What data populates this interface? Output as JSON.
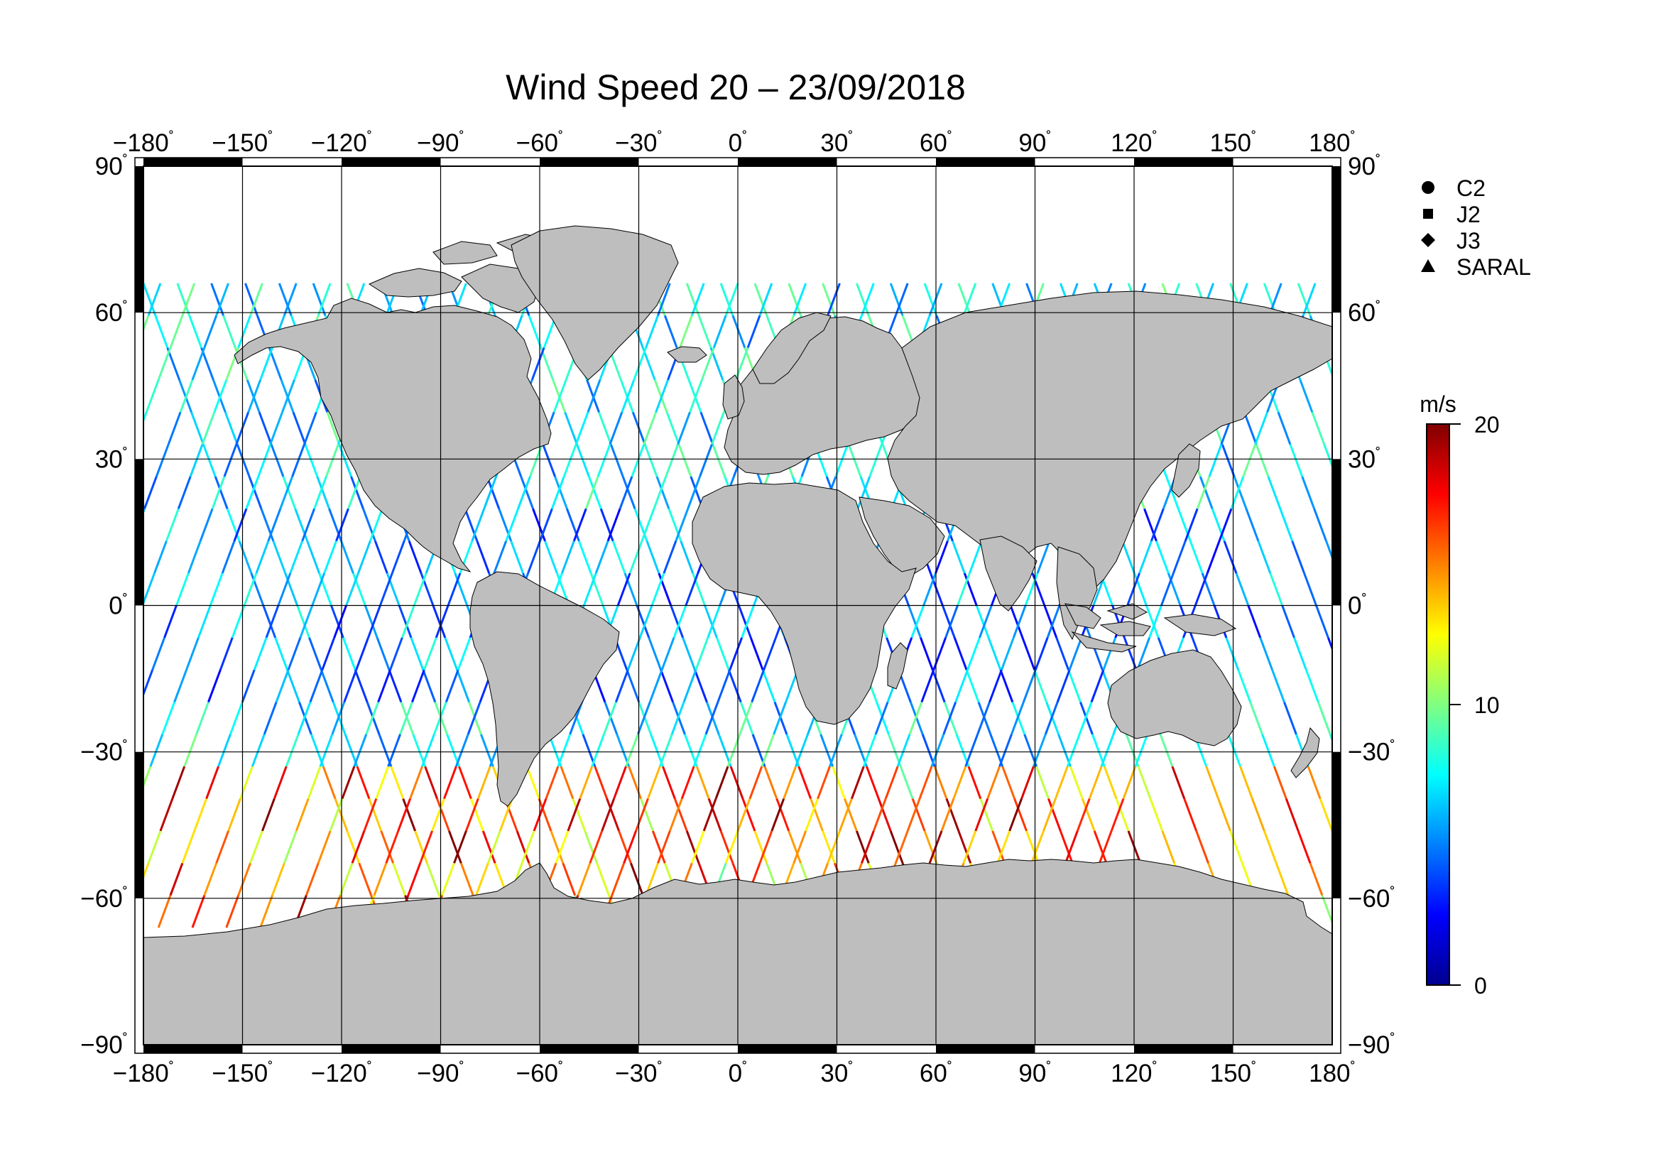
{
  "title": "Wind Speed 20 – 23/09/2018",
  "lon_ticks": [
    -180,
    -150,
    -120,
    -90,
    -60,
    -30,
    0,
    30,
    60,
    90,
    120,
    150,
    180
  ],
  "lat_ticks": [
    90,
    60,
    30,
    0,
    -30,
    -60,
    -90
  ],
  "lon_labels": [
    "−180",
    "−150",
    "−120",
    "−90",
    "−60",
    "−30",
    "0",
    "30",
    "60",
    "90",
    "120",
    "150",
    "180"
  ],
  "lat_labels": [
    "90",
    "60",
    "30",
    "0",
    "−30",
    "−60",
    "−90"
  ],
  "degree_symbol": "˚",
  "legend": [
    {
      "label": "C2",
      "symbol": "circle"
    },
    {
      "label": "J2",
      "symbol": "square"
    },
    {
      "label": "J3",
      "symbol": "diamond"
    },
    {
      "label": "SARAL",
      "symbol": "triangle"
    }
  ],
  "colorbar": {
    "unit": "m/s",
    "min": 0,
    "max": 20,
    "ticks": [
      {
        "value": 20,
        "label": "20"
      },
      {
        "value": 10,
        "label": "10"
      },
      {
        "value": 0,
        "label": "0"
      }
    ],
    "colors": [
      "#00008f",
      "#0000ff",
      "#0080ff",
      "#00ffff",
      "#80ff80",
      "#ffff00",
      "#ff8000",
      "#ff0000",
      "#800000"
    ]
  },
  "colors": {
    "land": "#bebebe",
    "grid": "#000000",
    "background": "#ffffff"
  },
  "map": {
    "projection": "equirectangular",
    "lon_range": [
      -180,
      180
    ],
    "lat_range": [
      -90,
      90
    ]
  }
}
